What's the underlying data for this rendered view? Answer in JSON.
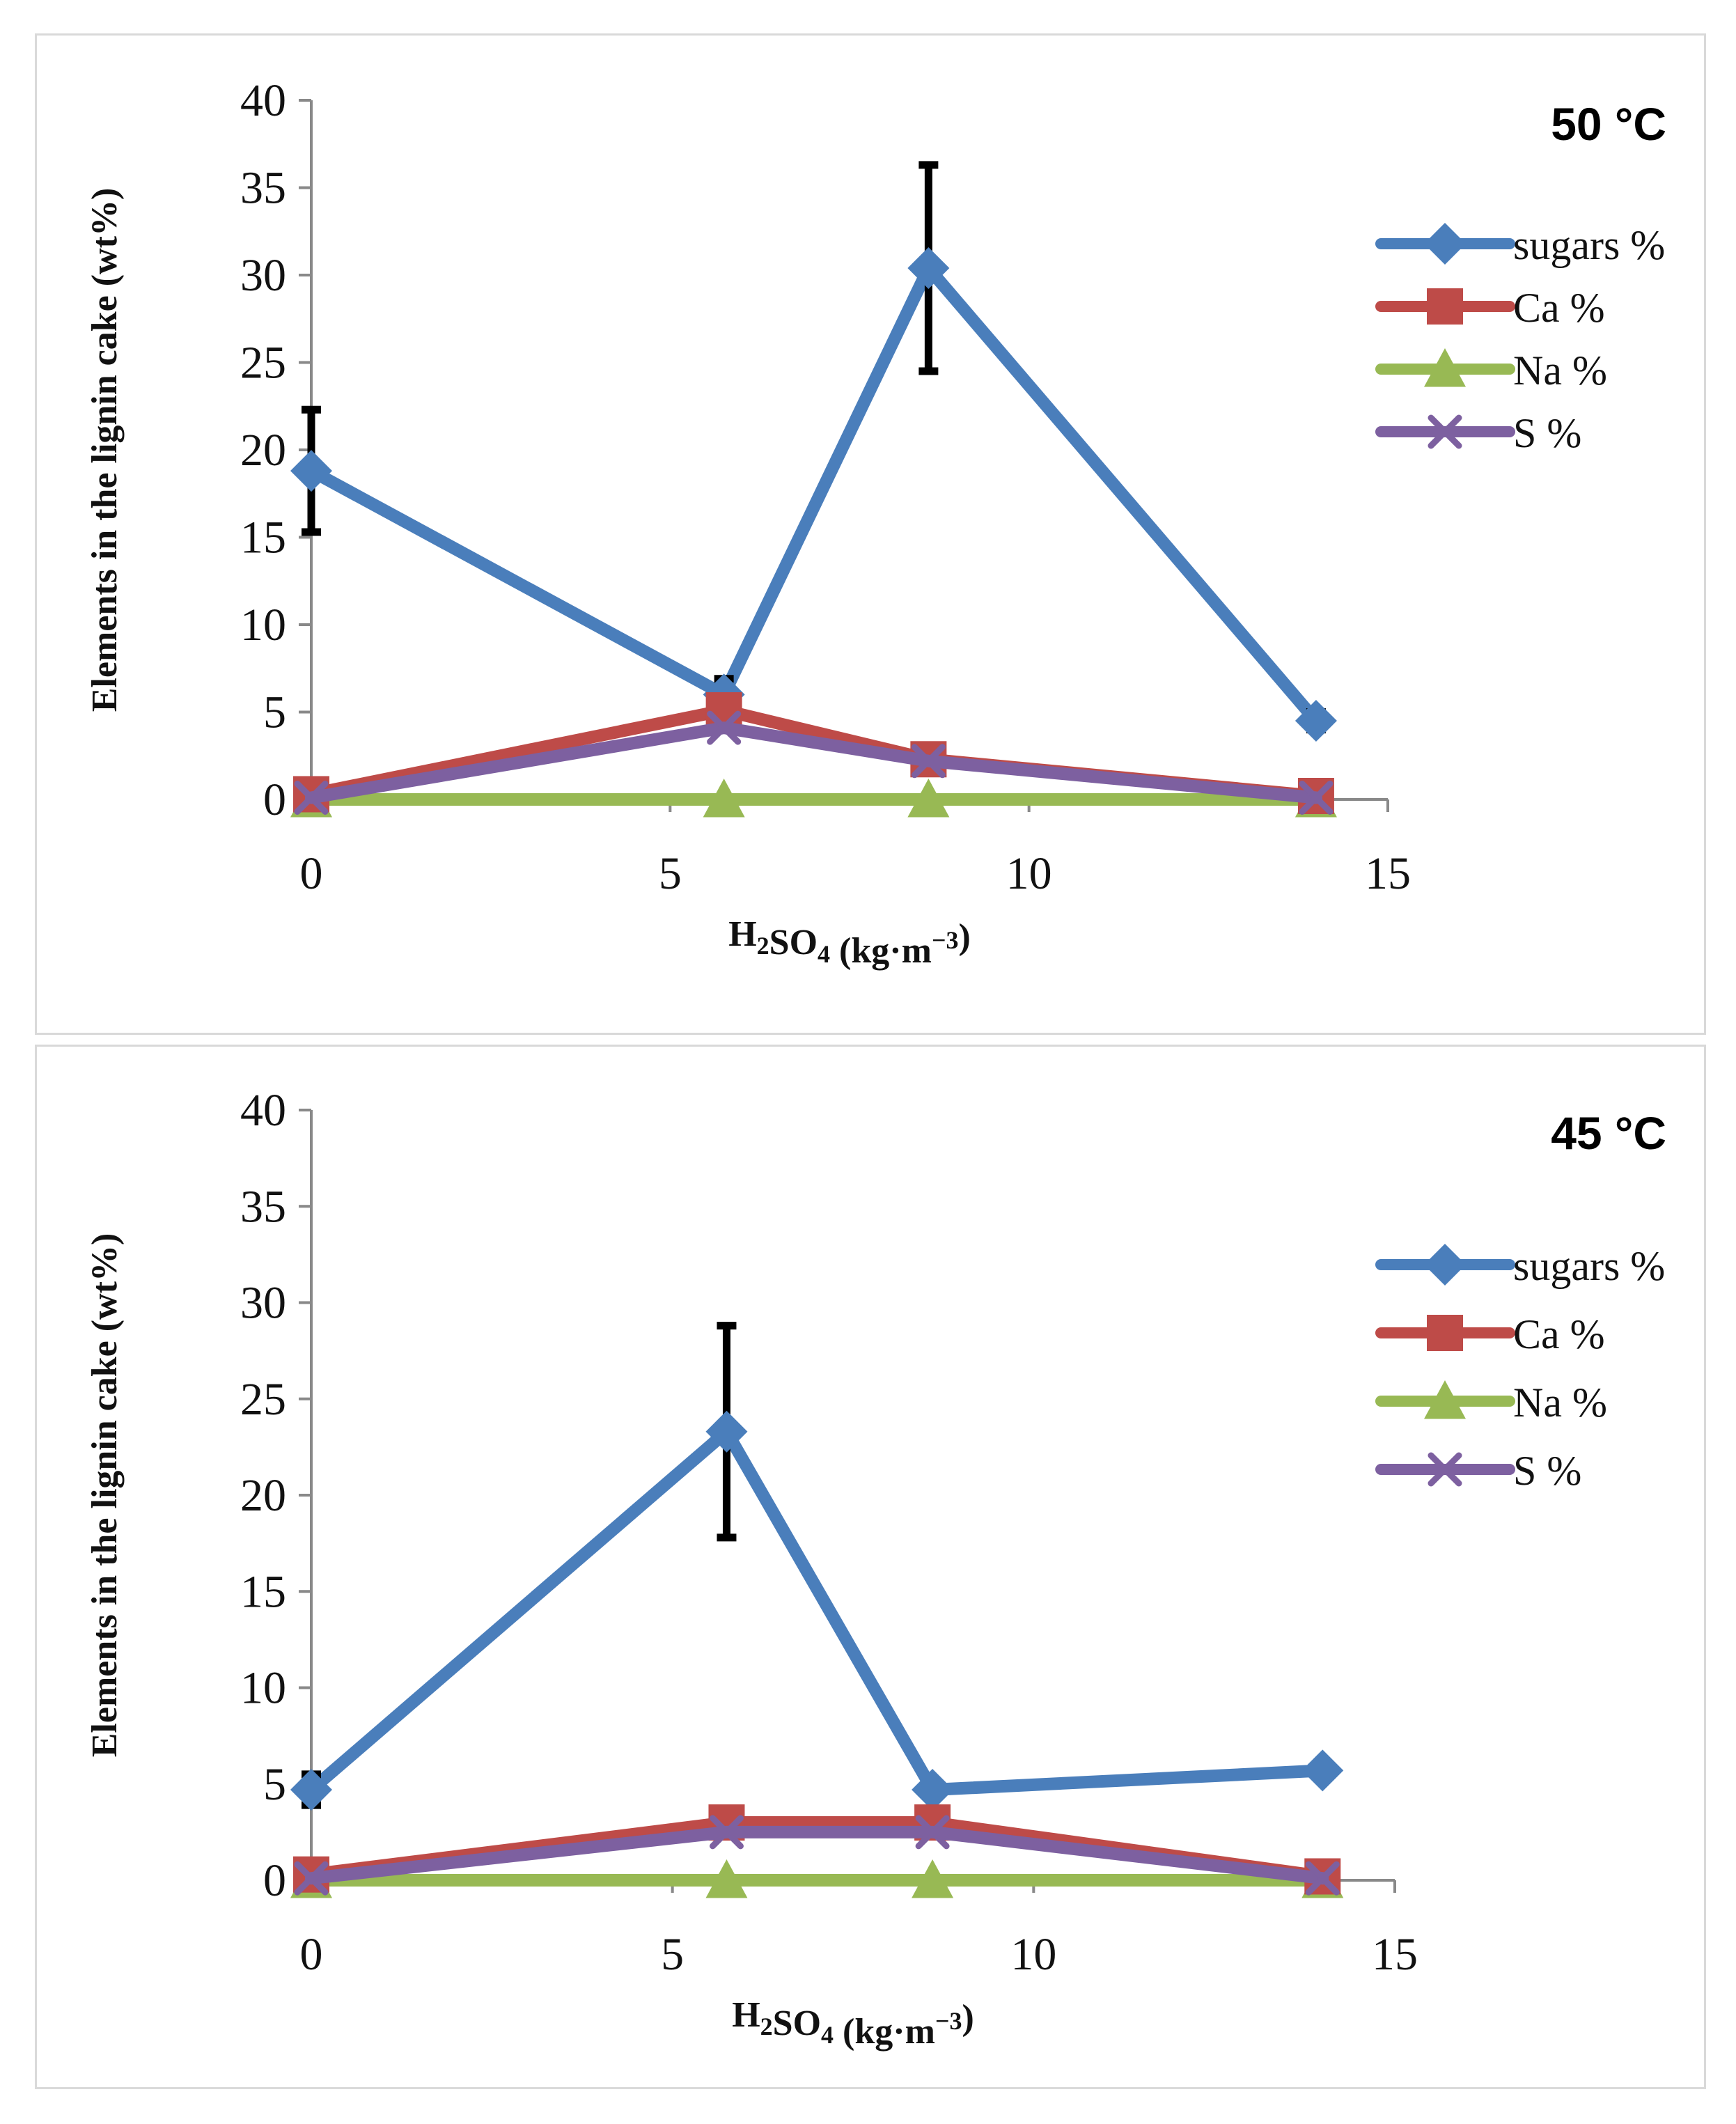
{
  "colors": {
    "sugars": "#4a7ebb",
    "ca": "#be4b48",
    "na": "#98b954",
    "s": "#7d60a0",
    "axis": "#898989",
    "error": "#000000"
  },
  "chart_data": [
    {
      "type": "line",
      "title": "50 °C",
      "xlabel": "H2SO4 (kg·m-3)",
      "ylabel": "Elements in the lignin cake (wt%)",
      "xlim": [
        0,
        15
      ],
      "ylim": [
        0,
        40
      ],
      "x_ticks": [
        "0",
        "5",
        "10",
        "15"
      ],
      "y_ticks": [
        "0",
        "5",
        "10",
        "15",
        "20",
        "25",
        "30",
        "35",
        "40"
      ],
      "x": [
        0,
        5.75,
        8.6,
        14
      ],
      "series": [
        {
          "name": "sugars %",
          "key": "sugars",
          "marker": "diamond",
          "values": [
            18.8,
            6.0,
            30.4,
            4.5
          ],
          "errors": [
            3.5,
            0.9,
            5.9,
            0.5
          ]
        },
        {
          "name": "Ca %",
          "key": "ca",
          "marker": "square",
          "values": [
            0.3,
            5.1,
            2.3,
            0.2
          ]
        },
        {
          "name": "Na %",
          "key": "na",
          "marker": "triangle",
          "values": [
            0,
            0,
            0,
            0
          ]
        },
        {
          "name": "S %",
          "key": "s",
          "marker": "x",
          "values": [
            0.1,
            4.1,
            2.2,
            0.1
          ]
        }
      ]
    },
    {
      "type": "line",
      "title": "45 °C",
      "xlabel": "H2SO4 (kg·m-3)",
      "ylabel": "Elements in the lignin cake (wt%)",
      "xlim": [
        0,
        15
      ],
      "ylim": [
        0,
        40
      ],
      "x_ticks": [
        "0",
        "5",
        "10",
        "15"
      ],
      "y_ticks": [
        "0",
        "5",
        "10",
        "15",
        "20",
        "25",
        "30",
        "35",
        "40"
      ],
      "x": [
        0,
        5.75,
        8.6,
        14
      ],
      "series": [
        {
          "name": "sugars %",
          "key": "sugars",
          "marker": "diamond",
          "values": [
            4.7,
            23.3,
            4.7,
            5.7
          ],
          "errors": [
            0.8,
            5.5,
            0.3,
            0.3
          ]
        },
        {
          "name": "Ca %",
          "key": "ca",
          "marker": "square",
          "values": [
            0.3,
            3.0,
            3.0,
            0.2
          ]
        },
        {
          "name": "Na %",
          "key": "na",
          "marker": "triangle",
          "values": [
            0,
            0,
            0,
            0
          ]
        },
        {
          "name": "S %",
          "key": "s",
          "marker": "x",
          "values": [
            0.1,
            2.5,
            2.5,
            0.1
          ]
        }
      ]
    }
  ]
}
